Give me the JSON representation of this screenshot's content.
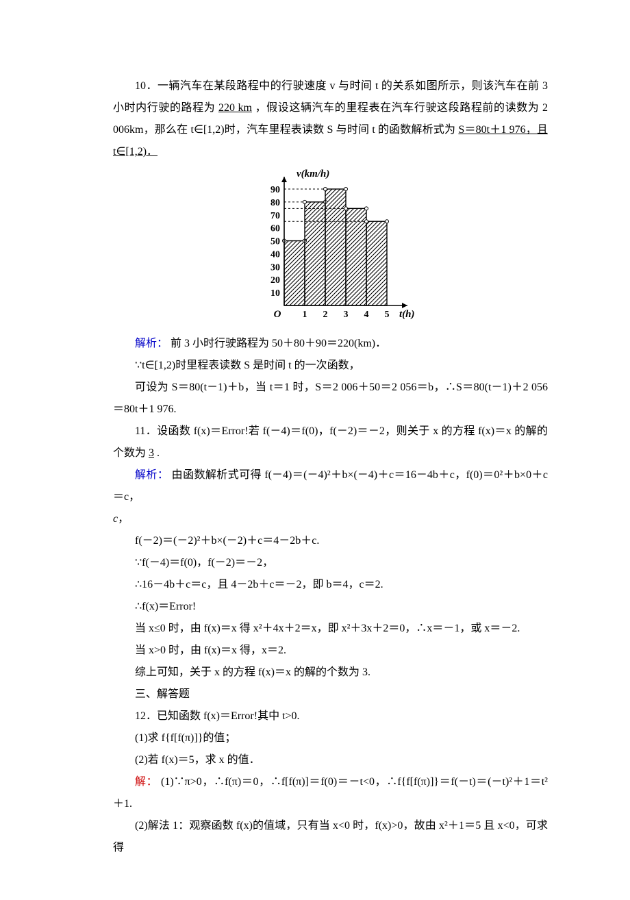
{
  "p10_a": "10．一辆汽车在某段路程中的行驶速度 v 与时间 t 的关系如图所示，则该汽车在前 3 小时内行驶的路程为",
  "p10_ans1": "220 km",
  "p10_b": "，假设这辆汽车的里程表在汽车行驶这段路程前的读数为 2 006km，那么在 t∈[1,2)时，汽车里程表读数 S 与时间 t 的函数解析式为",
  "p10_ans2": "S＝80t＋1 976，且 t∈[1,2)．",
  "chart": {
    "type": "bar-step",
    "x_label": "t(h)",
    "y_label": "v(km/h)",
    "x_ticks": [
      1,
      2,
      3,
      4,
      5
    ],
    "y_ticks": [
      10,
      20,
      30,
      40,
      50,
      60,
      70,
      80,
      90
    ],
    "y_max": 90,
    "bars": [
      {
        "x0": 0,
        "x1": 1,
        "y": 50
      },
      {
        "x0": 1,
        "x1": 2,
        "y": 80
      },
      {
        "x0": 2,
        "x1": 3,
        "y": 90
      },
      {
        "x0": 3,
        "x1": 4,
        "y": 75
      },
      {
        "x0": 4,
        "x1": 5,
        "y": 65
      }
    ],
    "axis_color": "#000000",
    "hatch_color": "#000000",
    "label_fontsize_pt": 15,
    "tick_fontsize_pt": 14,
    "origin_label": "O"
  },
  "s10_label": "解析：",
  "s10_l1": "前 3 小时行驶路程为 50＋80＋90＝220(km)．",
  "s10_l2": "∵t∈[1,2)时里程表读数 S 是时间 t 的一次函数，",
  "s10_l3": "可设为 S＝80(t－1)＋b，当 t＝1 时，S＝2 006＋50＝2 056＝b，∴S＝80(t－1)＋2 056＝80t＋1 976.",
  "p11_a": "11．设函数 f(x)＝Error!若 f(－4)＝f(0)，f(－2)＝－2，则关于 x 的方程 f(x)＝x 的解的个数为",
  "p11_ans": "3",
  "p11_b": ".",
  "s11_label": "解析：",
  "s11_l1": "由函数解析式可得 f(－4)＝(－4)²＋b×(－4)＋c＝16－4b＋c，f(0)＝0²＋b×0＋c＝c，",
  "s11_l2": "f(－2)＝(－2)²＋b×(－2)＋c＝4－2b＋c.",
  "s11_l3": "∵f(－4)＝f(0)，f(－2)＝－2，",
  "s11_l4": "∴16－4b＋c＝c，且 4－2b＋c＝－2，即 b＝4，c＝2.",
  "s11_l5": "∴f(x)＝Error!",
  "s11_l6": "当 x≤0 时，由 f(x)＝x 得 x²＋4x＋2＝x，即 x²＋3x＋2＝0，∴x＝－1，或 x＝－2.",
  "s11_l7": "当 x>0 时，由 f(x)＝x 得，x＝2.",
  "s11_l8": "综上可知，关于 x 的方程 f(x)＝x 的解的个数为 3.",
  "sec3": "三、解答题",
  "p12_a": "12．已知函数 f(x)＝Error!其中 t>0.",
  "p12_q1": "(1)求 f{f[f(π)]}的值；",
  "p12_q2": "(2)若 f(x)＝5，求 x 的值．",
  "s12_label": "解：",
  "s12_l1": "(1)∵π>0，∴f(π)＝0，∴f[f(π)]＝f(0)＝－t<0，∴f{f[f(π)]}＝f(－t)＝(－t)²＋1＝t²＋1.",
  "s12_l2": "(2)解法 1：观察函数 f(x)的值域，只有当 x<0 时，f(x)>0，故由 x²＋1＝5 且 x<0，可求得"
}
